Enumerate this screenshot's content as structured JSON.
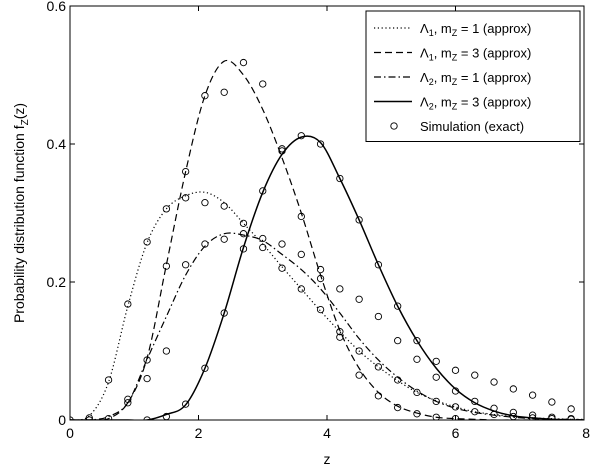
{
  "chart_data": {
    "type": "line",
    "xlabel": "z",
    "ylabel": "Probability distribution function f",
    "ylabel_sub": "Z",
    "ylabel_suffix": "(z)",
    "xlim": [
      0,
      8
    ],
    "ylim": [
      0,
      0.6
    ],
    "xticks": [
      0,
      2,
      4,
      6,
      8
    ],
    "xtick_labels": [
      "0",
      "2",
      "4",
      "6",
      "8"
    ],
    "yticks": [
      0,
      0.2,
      0.4,
      0.6
    ],
    "ytick_labels": [
      "0",
      "0.2",
      "0.4",
      "0.6"
    ],
    "grid": false,
    "legend_position": "top-right",
    "series": [
      {
        "name": "Λ1, mZ = 1 (approx)",
        "label_parts": [
          "Λ",
          "1",
          ", m",
          "Z",
          " = 1 (approx)"
        ],
        "style": "dotted",
        "x": [
          0,
          0.3,
          0.6,
          0.9,
          1.2,
          1.5,
          1.8,
          2.1,
          2.4,
          2.7,
          3.0,
          3.3,
          3.6,
          3.9,
          4.2,
          4.5,
          4.8,
          5.1,
          5.4,
          5.7,
          6.0,
          6.3,
          6.6,
          6.9,
          7.2,
          7.5,
          7.8,
          8.0
        ],
        "y": [
          0,
          0.006,
          0.055,
          0.165,
          0.257,
          0.306,
          0.325,
          0.33,
          0.315,
          0.285,
          0.255,
          0.222,
          0.19,
          0.158,
          0.128,
          0.1,
          0.077,
          0.057,
          0.04,
          0.028,
          0.019,
          0.012,
          0.008,
          0.005,
          0.003,
          0.002,
          0.001,
          0.001
        ]
      },
      {
        "name": "Λ1, mZ = 3 (approx)",
        "label_parts": [
          "Λ",
          "1",
          ", m",
          "Z",
          " = 3 (approx)"
        ],
        "style": "dashed",
        "x": [
          0,
          0.3,
          0.6,
          0.9,
          1.2,
          1.5,
          1.8,
          2.1,
          2.4,
          2.7,
          3.0,
          3.3,
          3.6,
          3.9,
          4.2,
          4.5,
          4.8,
          5.1,
          5.4,
          5.7,
          6.0,
          6.3,
          6.6,
          6.9,
          7.2,
          7.5,
          7.8,
          8.0
        ],
        "y": [
          0,
          0,
          0.002,
          0.025,
          0.09,
          0.225,
          0.36,
          0.47,
          0.52,
          0.5,
          0.45,
          0.38,
          0.3,
          0.21,
          0.13,
          0.075,
          0.04,
          0.02,
          0.01,
          0.004,
          0.002,
          0.001,
          0,
          0,
          0,
          0,
          0,
          0
        ]
      },
      {
        "name": "Λ2, mZ = 1 (approx)",
        "label_parts": [
          "Λ",
          "2",
          ", m",
          "Z",
          " = 1 (approx)"
        ],
        "style": "dashdot",
        "x": [
          0,
          0.3,
          0.6,
          0.9,
          1.2,
          1.5,
          1.8,
          2.1,
          2.4,
          2.7,
          3.0,
          3.3,
          3.6,
          3.9,
          4.2,
          4.5,
          4.8,
          5.1,
          5.4,
          5.7,
          6.0,
          6.3,
          6.6,
          6.9,
          7.2,
          7.5,
          7.8,
          8.0
        ],
        "y": [
          0,
          0,
          0.005,
          0.025,
          0.088,
          0.15,
          0.21,
          0.252,
          0.27,
          0.268,
          0.26,
          0.24,
          0.218,
          0.19,
          0.155,
          0.118,
          0.087,
          0.062,
          0.042,
          0.027,
          0.017,
          0.011,
          0.007,
          0.004,
          0.002,
          0.001,
          0.001,
          0
        ]
      },
      {
        "name": "Λ2, mZ = 3 (approx)",
        "label_parts": [
          "Λ",
          "2",
          ", m",
          "Z",
          " = 3 (approx)"
        ],
        "style": "solid",
        "x": [
          0,
          0.3,
          0.6,
          0.9,
          1.2,
          1.5,
          1.8,
          2.1,
          2.4,
          2.7,
          3.0,
          3.3,
          3.6,
          3.9,
          4.2,
          4.5,
          4.8,
          5.1,
          5.4,
          5.7,
          6.0,
          6.3,
          6.6,
          6.9,
          7.2,
          7.5,
          7.8,
          8.0
        ],
        "y": [
          0,
          0,
          0,
          0,
          0,
          0.008,
          0.022,
          0.075,
          0.155,
          0.25,
          0.33,
          0.385,
          0.41,
          0.402,
          0.35,
          0.29,
          0.225,
          0.165,
          0.115,
          0.075,
          0.045,
          0.025,
          0.013,
          0.006,
          0.003,
          0.001,
          0,
          0
        ]
      },
      {
        "name": "Simulation (exact)",
        "label_parts": [
          "Simulation (exact)"
        ],
        "style": "markers",
        "marker": "circle",
        "points": [
          [
            0,
            0
          ],
          [
            0.3,
            0.003
          ],
          [
            0.6,
            0.058
          ],
          [
            0.9,
            0.168
          ],
          [
            1.2,
            0.258
          ],
          [
            1.5,
            0.306
          ],
          [
            1.8,
            0.322
          ],
          [
            2.1,
            0.315
          ],
          [
            2.4,
            0.31
          ],
          [
            2.7,
            0.285
          ],
          [
            3.0,
            0.25
          ],
          [
            3.3,
            0.22
          ],
          [
            3.6,
            0.19
          ],
          [
            3.9,
            0.16
          ],
          [
            4.2,
            0.128
          ],
          [
            4.5,
            0.1
          ],
          [
            4.8,
            0.077
          ],
          [
            5.1,
            0.058
          ],
          [
            5.4,
            0.04
          ],
          [
            5.7,
            0.027
          ],
          [
            6.0,
            0.019
          ],
          [
            6.3,
            0.012
          ],
          [
            6.6,
            0.008
          ],
          [
            6.9,
            0.005
          ],
          [
            7.2,
            0.003
          ],
          [
            7.5,
            0.002
          ],
          [
            7.8,
            0.001
          ],
          [
            0.3,
            0
          ],
          [
            0.6,
            0.002
          ],
          [
            0.9,
            0.03
          ],
          [
            1.2,
            0.087
          ],
          [
            1.5,
            0.223
          ],
          [
            1.8,
            0.36
          ],
          [
            2.1,
            0.47
          ],
          [
            2.4,
            0.475
          ],
          [
            2.7,
            0.518
          ],
          [
            3.0,
            0.487
          ],
          [
            3.3,
            0.39
          ],
          [
            3.6,
            0.295
          ],
          [
            3.9,
            0.205
          ],
          [
            4.2,
            0.12
          ],
          [
            4.5,
            0.065
          ],
          [
            4.8,
            0.035
          ],
          [
            5.1,
            0.018
          ],
          [
            5.4,
            0.009
          ],
          [
            5.7,
            0.004
          ],
          [
            6.0,
            0.002
          ],
          [
            0.9,
            0.025
          ],
          [
            1.2,
            0.06
          ],
          [
            1.5,
            0.1
          ],
          [
            1.8,
            0.225
          ],
          [
            2.1,
            0.255
          ],
          [
            2.4,
            0.262
          ],
          [
            2.7,
            0.27
          ],
          [
            3.0,
            0.263
          ],
          [
            3.3,
            0.255
          ],
          [
            3.6,
            0.24
          ],
          [
            3.9,
            0.218
          ],
          [
            4.2,
            0.19
          ],
          [
            4.5,
            0.175
          ],
          [
            4.8,
            0.15
          ],
          [
            5.1,
            0.115
          ],
          [
            5.4,
            0.088
          ],
          [
            5.7,
            0.062
          ],
          [
            6.0,
            0.042
          ],
          [
            6.3,
            0.027
          ],
          [
            6.6,
            0.017
          ],
          [
            6.9,
            0.011
          ],
          [
            7.2,
            0.007
          ],
          [
            7.5,
            0.004
          ],
          [
            7.8,
            0.002
          ],
          [
            1.2,
            0
          ],
          [
            1.5,
            0.005
          ],
          [
            1.8,
            0.023
          ],
          [
            2.1,
            0.075
          ],
          [
            2.4,
            0.155
          ],
          [
            2.7,
            0.248
          ],
          [
            3.0,
            0.332
          ],
          [
            3.3,
            0.393
          ],
          [
            3.6,
            0.412
          ],
          [
            3.9,
            0.4
          ],
          [
            4.2,
            0.35
          ],
          [
            4.5,
            0.29
          ],
          [
            4.8,
            0.225
          ],
          [
            5.1,
            0.165
          ],
          [
            5.4,
            0.115
          ],
          [
            5.7,
            0.085
          ],
          [
            6.0,
            0.072
          ],
          [
            6.3,
            0.065
          ],
          [
            6.6,
            0.055
          ],
          [
            6.9,
            0.045
          ],
          [
            7.2,
            0.036
          ],
          [
            7.5,
            0.026
          ],
          [
            7.8,
            0.016
          ]
        ]
      }
    ]
  }
}
